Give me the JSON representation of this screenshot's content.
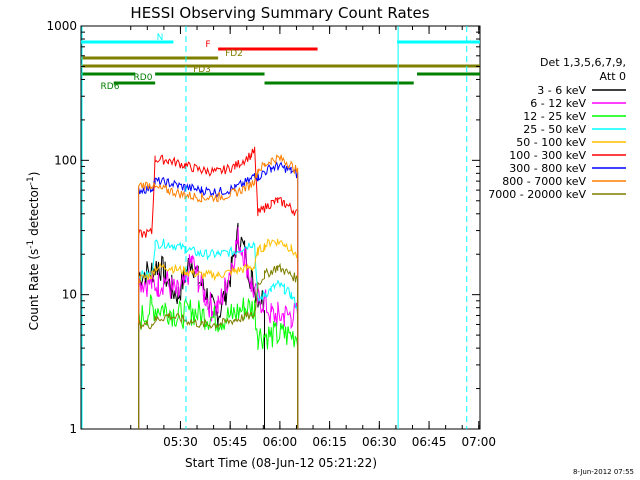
{
  "chart_data": {
    "type": "line",
    "title": "HESSI Observing Summary Count Rates",
    "xlabel": "Start Time (08-Jun-12 05:21:22)",
    "ylabel_main": "Count Rate (s",
    "ylabel_sup1": "-1",
    "ylabel_mid": " detector",
    "ylabel_sup2": "-1",
    "ylabel_end": ")",
    "y_scale": "log",
    "ylim": [
      1,
      1000
    ],
    "x_range_minutes": [
      -21.3667,
      99.0
    ],
    "x_ticks": [
      {
        "label": "05:30",
        "value": 8.6333
      },
      {
        "label": "05:45",
        "value": 23.6333
      },
      {
        "label": "06:00",
        "value": 38.6333
      },
      {
        "label": "06:15",
        "value": 53.6333
      },
      {
        "label": "06:30",
        "value": 68.6333
      },
      {
        "label": "06:45",
        "value": 83.6333
      },
      {
        "label": "07:00",
        "value": 98.6333
      }
    ],
    "y_ticks": [
      {
        "label": "1",
        "value": 1
      },
      {
        "label": "10",
        "value": 10
      },
      {
        "label": "100",
        "value": 100
      },
      {
        "label": "1000",
        "value": 1000
      }
    ],
    "legend_title_line1": "Det 1,3,5,6,7,9,",
    "legend_title_line2": "Att 0",
    "legend_position": "right",
    "timestamp": "8-Jun-2012 07:55",
    "series": [
      {
        "name": "3 - 6 keV",
        "color": "#000000",
        "x": [
          -5,
          -4,
          0,
          2,
          4,
          6,
          8,
          10,
          12,
          14,
          16,
          18,
          20,
          22,
          24,
          26,
          28,
          30,
          32,
          34,
          35,
          38,
          40,
          42,
          44,
          46
        ],
        "y": [
          null,
          14,
          15,
          17,
          14,
          11,
          10,
          14,
          19,
          13,
          11,
          8,
          7,
          10,
          15,
          28,
          21,
          13,
          10,
          9,
          null,
          null,
          null,
          null,
          null,
          null
        ]
      },
      {
        "name": "6 - 12 keV",
        "color": "#ff00ff",
        "x": [
          -5,
          -4,
          0,
          2,
          4,
          6,
          8,
          10,
          12,
          14,
          16,
          18,
          20,
          22,
          24,
          26,
          28,
          30,
          32,
          34,
          36,
          38,
          40,
          42,
          44,
          46
        ],
        "y": [
          null,
          13,
          12,
          12,
          13,
          11,
          10,
          12,
          18,
          13,
          10,
          8,
          8,
          11,
          17,
          26,
          20,
          12,
          9,
          9,
          7,
          7,
          7,
          7,
          7,
          null
        ]
      },
      {
        "name": "12 - 25 keV",
        "color": "#00ff00",
        "x": [
          -5,
          -4,
          0,
          4,
          8,
          12,
          16,
          20,
          24,
          28,
          31,
          32,
          36,
          40,
          44,
          46
        ],
        "y": [
          null,
          6.5,
          8,
          8,
          7,
          7.5,
          7,
          6.5,
          7,
          8,
          8,
          5,
          5,
          5,
          5,
          null
        ]
      },
      {
        "name": "25 - 50 keV",
        "color": "#00ffff",
        "x": [
          -5,
          -4,
          0,
          1,
          5,
          10,
          15,
          20,
          25,
          30,
          31,
          32,
          34,
          36,
          38,
          40,
          42,
          44,
          46
        ],
        "y": [
          null,
          14,
          14,
          24,
          24,
          22,
          20,
          20,
          21,
          24,
          24,
          9,
          10,
          11,
          12,
          11,
          10,
          8,
          null
        ]
      },
      {
        "name": "50 - 100 keV",
        "color": "#ffbf00",
        "x": [
          -5,
          -4,
          0,
          1,
          5,
          10,
          15,
          20,
          25,
          30,
          31,
          32,
          34,
          36,
          38,
          40,
          42,
          44,
          46
        ],
        "y": [
          null,
          13,
          14,
          16,
          16,
          15,
          14,
          14,
          15,
          16,
          16,
          21,
          23,
          25,
          25,
          24,
          22,
          19,
          null
        ]
      },
      {
        "name": "100 - 300 keV",
        "color": "#ff0000",
        "x": [
          -5,
          -4,
          0,
          1,
          5,
          10,
          15,
          20,
          25,
          30,
          31,
          32,
          34,
          36,
          38,
          40,
          42,
          44,
          46
        ],
        "y": [
          null,
          28,
          29,
          102,
          100,
          92,
          84,
          82,
          90,
          110,
          118,
          40,
          44,
          48,
          50,
          48,
          44,
          40,
          null
        ]
      },
      {
        "name": "300 - 800 keV",
        "color": "#0000ff",
        "x": [
          -5,
          -4,
          0,
          1,
          5,
          10,
          15,
          20,
          25,
          30,
          31,
          32,
          34,
          36,
          38,
          40,
          42,
          44,
          46
        ],
        "y": [
          null,
          60,
          62,
          70,
          68,
          63,
          60,
          58,
          62,
          72,
          80,
          75,
          82,
          88,
          90,
          88,
          84,
          78,
          null
        ]
      },
      {
        "name": "800 - 7000 keV",
        "color": "#ff7f00",
        "x": [
          -5,
          -4,
          0,
          1,
          5,
          10,
          15,
          20,
          25,
          30,
          31,
          32,
          34,
          36,
          38,
          40,
          42,
          44,
          46
        ],
        "y": [
          null,
          65,
          66,
          62,
          60,
          55,
          53,
          53,
          57,
          66,
          72,
          85,
          92,
          100,
          104,
          100,
          92,
          82,
          null
        ]
      },
      {
        "name": "7000 - 20000 keV",
        "color": "#7f7f00",
        "x": [
          -5,
          -4,
          0,
          1,
          5,
          10,
          15,
          20,
          25,
          30,
          31,
          32,
          34,
          36,
          38,
          40,
          42,
          44,
          46
        ],
        "y": [
          null,
          6,
          6,
          6.5,
          7,
          6.5,
          6,
          6,
          6.5,
          7,
          7,
          12,
          14,
          15,
          16,
          15,
          14,
          13,
          null
        ]
      }
    ],
    "flags": [
      {
        "label": "N",
        "color": "#00ffff",
        "segments": [
          [
            -21.3667,
            6.5
          ],
          [
            74.0,
            99.0
          ]
        ],
        "row": 0
      },
      {
        "label": "F",
        "color": "#ff0000",
        "segments": [
          [
            20.0,
            50.0
          ]
        ],
        "row": 1
      },
      {
        "label": "FD2",
        "color": "#7f7f00",
        "segments": [
          [
            -21.3667,
            20.0
          ]
        ],
        "row": 2
      },
      {
        "label": "FD3",
        "color": "#7f7f00",
        "segments": [
          [
            -21.3667,
            99.0
          ]
        ],
        "row": 3
      },
      {
        "label": "RD0",
        "color": "#007f00",
        "segments": [
          [
            -21.3667,
            -5.0
          ],
          [
            1.0,
            34.0
          ],
          [
            80.0,
            99.0
          ]
        ],
        "row": 4
      },
      {
        "label": "RD6",
        "color": "#007f00",
        "segments": [
          [
            -11.5,
            1.0
          ],
          [
            34.0,
            79.0
          ]
        ],
        "row": 5
      }
    ],
    "saa_markers_minutes": [
      {
        "value": 10.3,
        "style": "dashed"
      },
      {
        "value": 74.3,
        "style": "solid"
      },
      {
        "value": 95.0,
        "style": "dashed"
      }
    ]
  }
}
